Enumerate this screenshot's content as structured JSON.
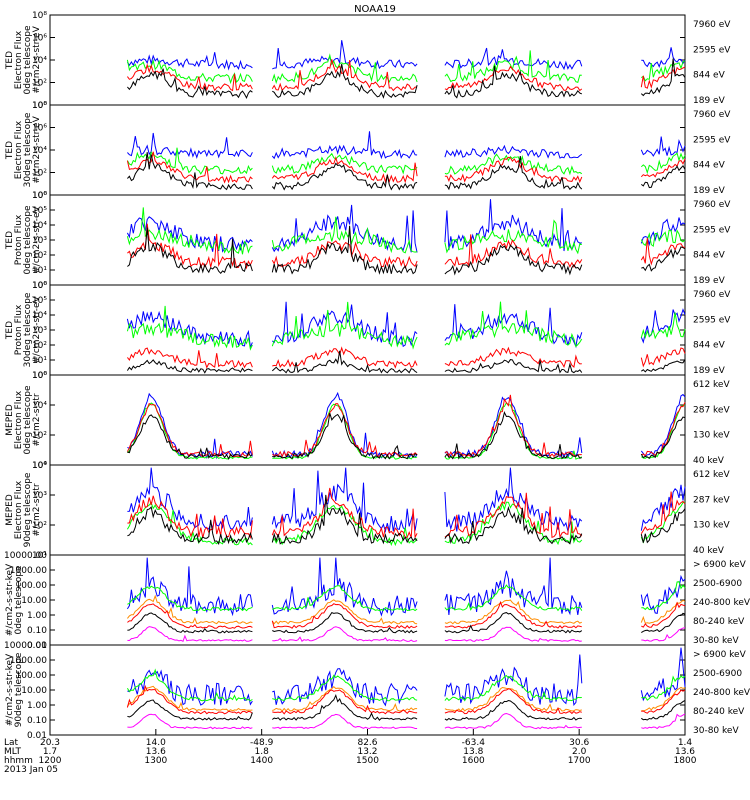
{
  "title": "NOAA19",
  "colors": {
    "blue": "#0000ff",
    "red": "#ff0000",
    "green": "#00ff00",
    "black": "#000000",
    "magenta": "#ff00ff",
    "orange": "#ff8c00"
  },
  "chart_data": {
    "type": "line",
    "time_range": [
      "1200",
      "1800"
    ],
    "panels": [
      {
        "id": "ted-e-0",
        "ylabel": [
          "TED",
          "Electron Flux",
          "0deg telescope",
          "#/cm2-s-str-eV"
        ],
        "log": true,
        "yticks": [
          "10⁰",
          "10²",
          "10⁴",
          "10⁶",
          "10⁸"
        ],
        "legend": [
          {
            "label": "7960 eV",
            "color": "#000000"
          },
          {
            "label": "2595 eV",
            "color": "#ff0000"
          },
          {
            "label": "844 eV",
            "color": "#00ff00"
          },
          {
            "label": "189 eV",
            "color": "#0000ff"
          }
        ]
      },
      {
        "id": "ted-e-30",
        "ylabel": [
          "TED",
          "Electron Flux",
          "30deg telescope",
          "#/cm2-s-str-eV"
        ],
        "log": true,
        "yticks": [
          "10⁰",
          "10²",
          "10⁴",
          "10⁶",
          "10⁸"
        ],
        "legend": [
          {
            "label": "7960 eV",
            "color": "#000000"
          },
          {
            "label": "2595 eV",
            "color": "#ff0000"
          },
          {
            "label": "844 eV",
            "color": "#00ff00"
          },
          {
            "label": "189 eV",
            "color": "#0000ff"
          }
        ]
      },
      {
        "id": "ted-p-0",
        "ylabel": [
          "TED",
          "Proton Flux",
          "0deg telescope",
          "#/cm2-s-str-eV"
        ],
        "log": true,
        "yticks": [
          "10⁰",
          "10¹",
          "10²",
          "10³",
          "10⁴",
          "10⁵",
          "10⁶"
        ],
        "legend": [
          {
            "label": "7960 eV",
            "color": "#000000"
          },
          {
            "label": "2595 eV",
            "color": "#ff0000"
          },
          {
            "label": "844 eV",
            "color": "#00ff00"
          },
          {
            "label": "189 eV",
            "color": "#0000ff"
          }
        ]
      },
      {
        "id": "ted-p-30",
        "ylabel": [
          "TED",
          "Proton Flux",
          "30deg telescope",
          "#/cm2-s-str-eV"
        ],
        "log": true,
        "yticks": [
          "10⁰",
          "10¹",
          "10²",
          "10³",
          "10⁴",
          "10⁵",
          "10⁶"
        ],
        "legend": [
          {
            "label": "7960 eV",
            "color": "#000000"
          },
          {
            "label": "2595 eV",
            "color": "#ff0000"
          },
          {
            "label": "844 eV",
            "color": "#00ff00"
          },
          {
            "label": "189 eV",
            "color": "#0000ff"
          }
        ]
      },
      {
        "id": "meped-e-0",
        "ylabel": [
          "MEPED",
          "Electron Flux",
          "0deg telescope",
          "#/cm2-s-str"
        ],
        "log": true,
        "yticks": [
          "10⁰",
          "10²",
          "10⁴",
          "10⁶"
        ],
        "legend": [
          {
            "label": "612 keV",
            "color": "#000000"
          },
          {
            "label": "287 keV",
            "color": "#ff0000"
          },
          {
            "label": "130 keV",
            "color": "#00ff00"
          },
          {
            "label": "40 keV",
            "color": "#0000ff"
          }
        ]
      },
      {
        "id": "meped-e-90",
        "ylabel": [
          "MEPED",
          "Electron Flux",
          "90deg telescope",
          "#/cm2-s-str"
        ],
        "log": true,
        "yticks": [
          "10¹",
          "10²",
          "10³",
          "10⁴"
        ],
        "legend": [
          {
            "label": "612 keV",
            "color": "#000000"
          },
          {
            "label": "287 keV",
            "color": "#ff0000"
          },
          {
            "label": "130 keV",
            "color": "#00ff00"
          },
          {
            "label": "40 keV",
            "color": "#0000ff"
          }
        ]
      },
      {
        "id": "meped-p-0",
        "ylabel": [
          "#/cm2-s-str-keV",
          "0deg telescope"
        ],
        "log": true,
        "yticks": [
          "0.01",
          "0.10",
          "1.00",
          "10.00",
          "100.00",
          "1000.00",
          "10000.00"
        ],
        "legend": [
          {
            "label": "> 6900 keV",
            "color": "#ff00ff"
          },
          {
            "label": "2500-6900",
            "color": "#000000"
          },
          {
            "label": "240-800 keV",
            "color": "#ff0000"
          },
          {
            "label": "80-240 keV",
            "color": "#00ff00"
          },
          {
            "label": "30-80 keV",
            "color": "#0000ff"
          }
        ]
      },
      {
        "id": "meped-p-90",
        "ylabel": [
          "#/cm2-s-str-keV",
          "90deg telescope"
        ],
        "log": true,
        "yticks": [
          "0.01",
          "0.10",
          "1.00",
          "10.00",
          "100.00",
          "1000.00",
          "10000.00"
        ],
        "legend": [
          {
            "label": "> 6900 keV",
            "color": "#ff00ff"
          },
          {
            "label": "2500-6900",
            "color": "#000000"
          },
          {
            "label": "240-800 keV",
            "color": "#ff0000"
          },
          {
            "label": "80-240 keV",
            "color": "#00ff00"
          },
          {
            "label": "30-80 keV",
            "color": "#0000ff"
          }
        ]
      }
    ],
    "x_axis": {
      "row_labels": [
        "Lat",
        "MLT",
        "hhmm"
      ],
      "ticks": [
        {
          "lat": "20.3",
          "mlt": "1.7",
          "hhmm": "1200"
        },
        {
          "lat": "14.0",
          "mlt": "13.6",
          "hhmm": "1300"
        },
        {
          "lat": "-48.9",
          "mlt": "1.8",
          "hhmm": "1400"
        },
        {
          "lat": "82.6",
          "mlt": "13.2",
          "hhmm": "1500"
        },
        {
          "lat": "-63.4",
          "mlt": "13.8",
          "hhmm": "1600"
        },
        {
          "lat": "30.6",
          "mlt": "2.0",
          "hhmm": "1700"
        },
        {
          "lat": "1.4",
          "mlt": "13.6",
          "hhmm": "1800"
        }
      ],
      "date": "2013 Jan 05"
    }
  }
}
